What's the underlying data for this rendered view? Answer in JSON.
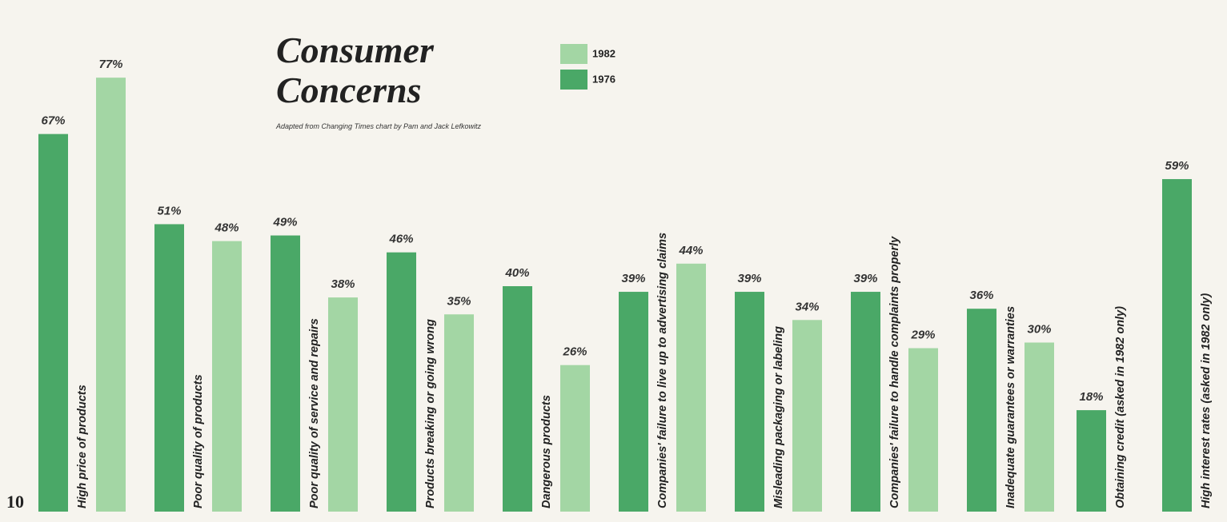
{
  "chart_data": {
    "type": "bar",
    "title": "Consumer Concerns",
    "subtitle": "Adapted from Changing Times chart by Pam and Jack Lefkowitz",
    "page_number": "10",
    "categories": [
      "High price of products",
      "Poor quality of products",
      "Poor quality of service and repairs",
      "Products breaking or going wrong",
      "Dangerous products",
      "Companies' failure to live up to advertising claims",
      "Misleading packaging or labeling",
      "Companies' failure to handle complaints properly",
      "Inadequate guarantees or warranties",
      "Obtaining credit (asked in 1982 only)",
      "High interest rates (asked in 1982 only)"
    ],
    "series": [
      {
        "name": "1982",
        "color": "#a3d6a4",
        "colors": [
          "#a3d6a4",
          "#a3d6a4",
          "#a3d6a4",
          "#a3d6a4",
          "#a3d6a4",
          "#a3d6a4",
          "#a3d6a4",
          "#a3d6a4",
          "#a3d6a4",
          "#4aa867",
          "#4aa867"
        ],
        "values": [
          77,
          48,
          38,
          35,
          26,
          44,
          34,
          29,
          30,
          18,
          59
        ],
        "value_labels": [
          "77%",
          "48%",
          "38%",
          "35%",
          "26%",
          "44%",
          "34%",
          "29%",
          "30%",
          "18%",
          "59%"
        ]
      },
      {
        "name": "1976",
        "color": "#4aa867",
        "values": [
          67,
          51,
          49,
          46,
          40,
          39,
          39,
          39,
          36,
          null,
          null
        ],
        "value_labels": [
          "67%",
          "51%",
          "49%",
          "46%",
          "40%",
          "39%",
          "39%",
          "39%",
          "36%",
          null,
          null
        ]
      }
    ]
  }
}
